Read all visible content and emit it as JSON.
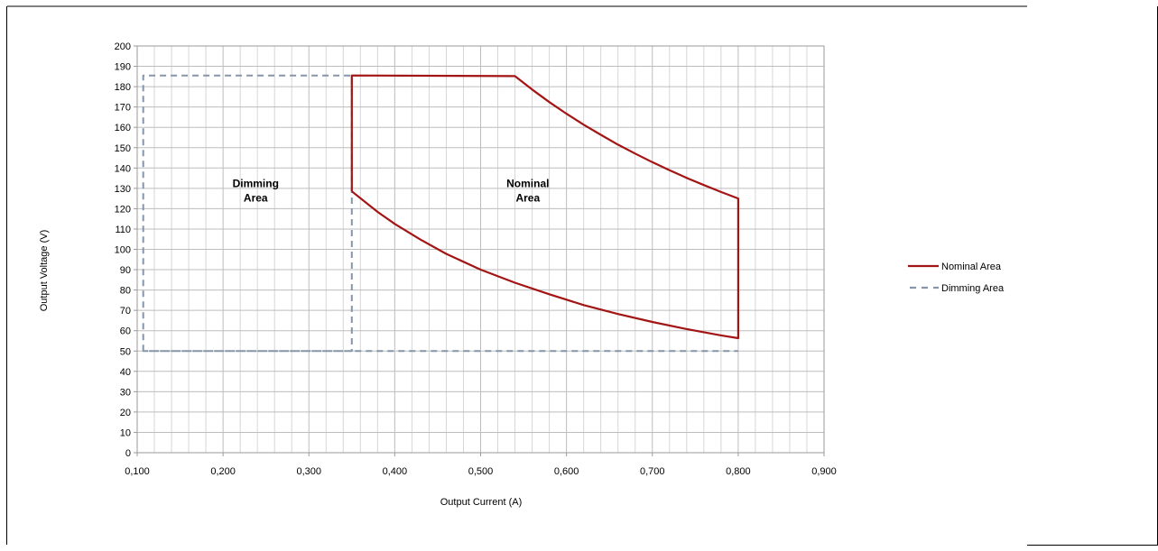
{
  "chart_data": {
    "type": "line",
    "xlabel": "Output Current (A)",
    "ylabel": "Output Voltage (V)",
    "xlim": [
      0.1,
      0.9
    ],
    "ylim": [
      0,
      200
    ],
    "x_major_ticks": [
      0.1,
      0.2,
      0.3,
      0.4,
      0.5,
      0.6,
      0.7,
      0.8,
      0.9
    ],
    "x_tick_labels": [
      "0,100",
      "0,200",
      "0,300",
      "0,400",
      "0,500",
      "0,600",
      "0,700",
      "0,800",
      "0,900"
    ],
    "x_minor_step": 0.02,
    "y_major_step": 10,
    "y_tick_labels": [
      "0",
      "10",
      "20",
      "30",
      "40",
      "50",
      "60",
      "70",
      "80",
      "90",
      "100",
      "110",
      "120",
      "130",
      "140",
      "150",
      "160",
      "170",
      "180",
      "190",
      "200"
    ],
    "grid": true,
    "legend_position": "right",
    "series": [
      {
        "name": "Nominal Area",
        "color": "#a31515",
        "style": "solid",
        "points": [
          [
            0.35,
            128.5
          ],
          [
            0.38,
            118.4
          ],
          [
            0.4,
            112.5
          ],
          [
            0.43,
            104.8
          ],
          [
            0.46,
            97.8
          ],
          [
            0.5,
            90.0
          ],
          [
            0.54,
            83.6
          ],
          [
            0.58,
            77.9
          ],
          [
            0.62,
            72.6
          ],
          [
            0.66,
            68.2
          ],
          [
            0.7,
            64.3
          ],
          [
            0.74,
            60.8
          ],
          [
            0.78,
            57.7
          ],
          [
            0.8,
            56.3
          ],
          [
            0.8,
            125.0
          ],
          [
            0.78,
            128.2
          ],
          [
            0.76,
            131.6
          ],
          [
            0.74,
            135.1
          ],
          [
            0.72,
            138.9
          ],
          [
            0.7,
            142.9
          ],
          [
            0.68,
            147.1
          ],
          [
            0.66,
            151.5
          ],
          [
            0.64,
            156.3
          ],
          [
            0.62,
            161.3
          ],
          [
            0.6,
            166.7
          ],
          [
            0.58,
            172.4
          ],
          [
            0.56,
            178.6
          ],
          [
            0.54,
            185.2
          ],
          [
            0.35,
            185.5
          ],
          [
            0.35,
            128.5
          ]
        ]
      },
      {
        "name": "Dimming Area",
        "color": "#8496a8",
        "style": "dashed",
        "points": [
          [
            0.107,
            50
          ],
          [
            0.107,
            185.5
          ],
          [
            0.35,
            185.5
          ],
          [
            0.35,
            50
          ],
          [
            0.107,
            50
          ],
          [
            0.8,
            50
          ]
        ]
      }
    ],
    "annotations": [
      {
        "lines": [
          "Dimming",
          "Area"
        ],
        "x": 0.238,
        "y": 127
      },
      {
        "lines": [
          "Nominal",
          "Area"
        ],
        "x": 0.555,
        "y": 127
      }
    ]
  }
}
